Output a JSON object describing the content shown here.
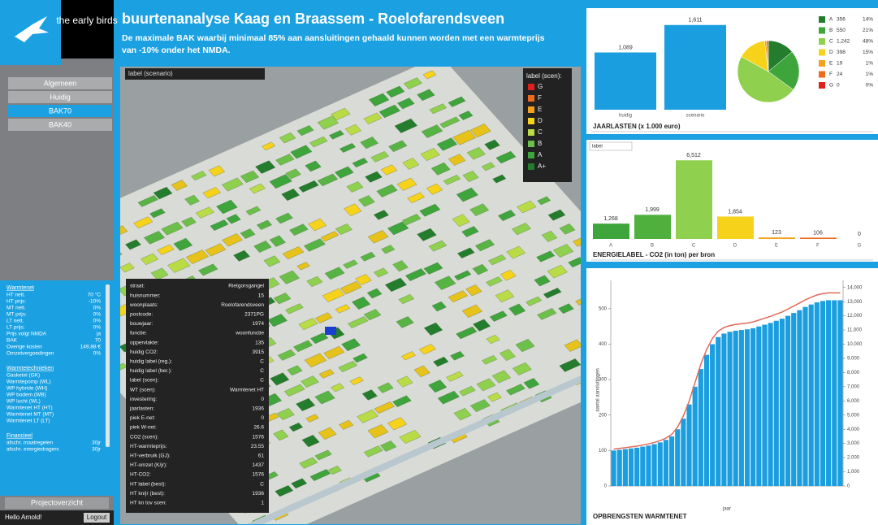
{
  "sidebar": {
    "logo": "the early birds",
    "menu": [
      "Algemeen",
      "Huidig",
      "BAK70",
      "BAK40"
    ],
    "selected": 2,
    "sections": [
      {
        "title": "Warmtenet",
        "rows": [
          [
            "HT nett.",
            "70 °C"
          ],
          [
            "HT prijs:",
            "-10%"
          ],
          [
            "MT nett.",
            "0%"
          ],
          [
            "MT prijs:",
            "0%"
          ],
          [
            "LT nett.",
            "0%"
          ],
          [
            "LT prijs:",
            "0%"
          ],
          [
            "Prijs volgt NMDA",
            "ja"
          ],
          [
            "BAK",
            "70"
          ],
          [
            "Overige kosten",
            "149,88 €"
          ],
          [
            "Omzetvergoedingen",
            "0%"
          ]
        ]
      },
      {
        "title": "Warmtetechnieken",
        "rows": [
          [
            "Gasketel (GK)",
            ""
          ],
          [
            "Warmtepomp (WL)",
            ""
          ],
          [
            "WP hybride (WH)",
            ""
          ],
          [
            "WP bodem (WB)",
            ""
          ],
          [
            "WP lucht (WL)",
            ""
          ],
          [
            "Warmtenet HT (HT)",
            ""
          ],
          [
            "Warmtenet MT (MT)",
            ""
          ],
          [
            "Warmtenet LT (LT)",
            ""
          ]
        ]
      },
      {
        "title": "Financieel",
        "rows": [
          [
            "afschr. maatregelen",
            "30jr"
          ],
          [
            "afschr. energiedragers",
            "30jr"
          ]
        ]
      }
    ],
    "projects": "Projectoverzicht",
    "greeting": "Hello Arnold!",
    "logout": "Logout"
  },
  "header": {
    "title": "buurtenanalyse Kaag en Braassem - Roelofarendsveen",
    "subtitle": [
      "De maximale BAK waarbij minimaal 85% aan aansluitingen gehaald kunnen worden met een warmteprijs",
      "van -10% onder het NMDA."
    ]
  },
  "map": {
    "dropdown": "label (scenario)",
    "legend_title": "label (scen):",
    "legend": [
      {
        "label": "G",
        "color": "#e0201a"
      },
      {
        "label": "F",
        "color": "#ee6a1c"
      },
      {
        "label": "E",
        "color": "#f4a21c"
      },
      {
        "label": "D",
        "color": "#f7d21a"
      },
      {
        "label": "C",
        "color": "#b9dc46"
      },
      {
        "label": "B",
        "color": "#6cc04a"
      },
      {
        "label": "A",
        "color": "#3ea43c"
      },
      {
        "label": "A+",
        "color": "#237d2c"
      }
    ],
    "info": [
      [
        "straat:",
        "Rietgorsgangel"
      ],
      [
        "huisnummer:",
        "15"
      ],
      [
        "woonplaats:",
        "Roelofarendsveen"
      ],
      [
        "postcode:",
        "2371PG"
      ],
      [
        "bouwjaar:",
        "1974"
      ],
      [
        "functie:",
        "woonfunctie"
      ],
      [
        "oppervlakte:",
        "135"
      ],
      [
        "huidig CO2:",
        "3915"
      ],
      [
        "huidig label (reg.):",
        "C"
      ],
      [
        "huidig label (ber.):",
        "C"
      ],
      [
        "label (scen):",
        "C"
      ],
      [
        "WT (scen):",
        "Warmtenet HT"
      ],
      [
        "investering:",
        "0"
      ],
      [
        "jaarlasten:",
        "1936"
      ],
      [
        "piek E-net:",
        "0"
      ],
      [
        "piek W-net:",
        "26.6"
      ],
      [
        "CO2 (scen):",
        "1576"
      ],
      [
        "HT-warmteprijs:",
        "23.55"
      ],
      [
        "HT-verbruik (GJ):",
        "61"
      ],
      [
        "HT-omzet (K/jr):",
        "1437"
      ],
      [
        "HT-CO2:",
        "1576"
      ],
      [
        "HT label (best):",
        "C"
      ],
      [
        "HT kn/jr (best):",
        "1936"
      ],
      [
        "HT kn tov scen:",
        "1"
      ]
    ]
  },
  "chart_data": [
    {
      "type": "bar",
      "title": "JAARLASTEN (x 1.000 euro)",
      "categories": [
        "huidig",
        "scenario"
      ],
      "values": [
        1089,
        1611
      ],
      "value_labels": [
        "1,089",
        "1,611"
      ],
      "color": "#1a9ee0",
      "ylim": [
        0,
        1700
      ]
    },
    {
      "type": "pie",
      "categories": [
        "A",
        "B",
        "C",
        "D",
        "E",
        "F",
        "G"
      ],
      "counts": [
        356,
        550,
        {
          "value": 1242,
          "label": "1,242"
        },
        398,
        19,
        24,
        0
      ],
      "values": [
        14,
        21,
        48,
        15,
        1,
        1,
        0
      ],
      "value_labels": [
        "14%",
        "21%",
        "48%",
        "15%",
        "1%",
        "1%",
        "0%"
      ],
      "colors": [
        "#237d2c",
        "#3ea43c",
        "#8fd04e",
        "#f7d21a",
        "#f4a21c",
        "#ee6a1c",
        "#e0201a"
      ]
    },
    {
      "type": "bar",
      "title": "ENERGIELABEL - CO2 (in ton) per bron",
      "dropdown": "label",
      "categories": [
        "A",
        "B",
        "C",
        "D",
        "E",
        "F",
        "G"
      ],
      "values": [
        1268,
        1999,
        6512,
        1854,
        123,
        106,
        0
      ],
      "value_labels": [
        "1,268",
        "1,999",
        "6,512",
        "1,854",
        "123",
        "106",
        "0"
      ],
      "colors": [
        "#3ea43c",
        "#4fb03e",
        "#8fd04e",
        "#f7d21a",
        "#f4a21c",
        "#ee6a1c",
        "#e0201a"
      ],
      "ylim": [
        0,
        7000
      ]
    },
    {
      "type": "combo",
      "title": "OPBRENGSTEN WARMTENET",
      "ylabel": "aantal aansluitingen",
      "xlabel": "jaar",
      "ylim": [
        0,
        580
      ],
      "yticks": [
        0,
        100,
        200,
        300,
        400,
        500
      ],
      "y2lim": [
        0,
        14500
      ],
      "y2ticks": [
        0,
        {
          "value": 1000,
          "label": "1,000"
        },
        {
          "value": 2000,
          "label": "2,000"
        },
        {
          "value": 3000,
          "label": "3,000"
        },
        {
          "value": 4000,
          "label": "4,000"
        },
        {
          "value": 5000,
          "label": "5,000"
        },
        {
          "value": 6000,
          "label": "6,000"
        },
        {
          "value": 7000,
          "label": "7,000"
        },
        {
          "value": 8000,
          "label": "8,000"
        },
        {
          "value": 9000,
          "label": "9,000"
        },
        {
          "value": 10000,
          "label": "10,000"
        },
        {
          "value": 11000,
          "label": "11,000"
        },
        {
          "value": 12000,
          "label": "12,000"
        },
        {
          "value": 13000,
          "label": "13,000"
        },
        {
          "value": 14000,
          "label": "14,000"
        }
      ],
      "series": [
        {
          "color": "#1a9ee0",
          "values": [
            100,
            102,
            104,
            106,
            108,
            111,
            114,
            118,
            123,
            130,
            140,
            160,
            190,
            230,
            280,
            330,
            370,
            400,
            420,
            430,
            435,
            438,
            440,
            442,
            445,
            450,
            455,
            460,
            466,
            472,
            480,
            488,
            496,
            505,
            512,
            518,
            522,
            524,
            524,
            524
          ]
        },
        {
          "color": "#e06a5a",
          "axis": "y2",
          "values": [
            2600,
            2650,
            2700,
            2760,
            2810,
            2890,
            2970,
            3070,
            3200,
            3380,
            3640,
            4160,
            4940,
            5980,
            7280,
            8580,
            9620,
            10400,
            10920,
            11180,
            11310,
            11390,
            11440,
            11490,
            11570,
            11700,
            11830,
            11960,
            12120,
            12270,
            12480,
            12690,
            12900,
            13130,
            13310,
            13470,
            13570,
            13620,
            13620,
            13620
          ]
        }
      ]
    }
  ]
}
